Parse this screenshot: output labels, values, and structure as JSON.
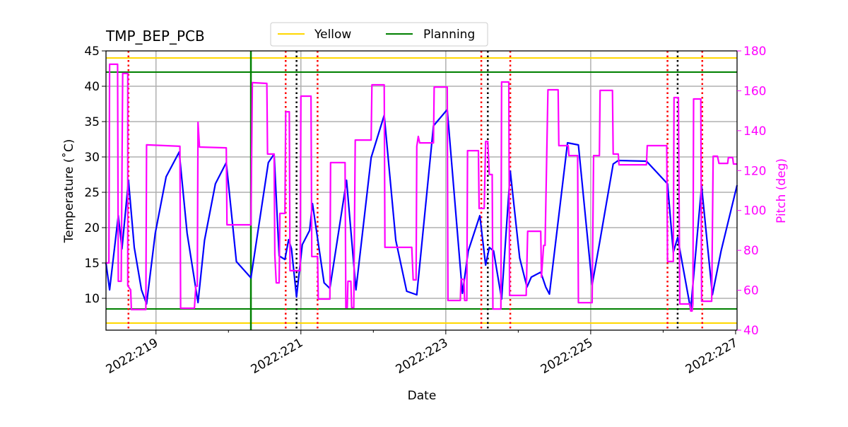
{
  "chart_data": {
    "type": "line",
    "title": "TMP_BEP_PCB",
    "xlabel": "Date",
    "ylabel": "Temperature ($^\\circ$C)",
    "ylabel_display": "Temperature (˚C)",
    "y2label": "Pitch (deg)",
    "xlim": [
      218.31,
      227.02
    ],
    "ylim": [
      5.5,
      45
    ],
    "y2lim": [
      40,
      180
    ],
    "grid": true,
    "x_ticks": [
      219,
      221,
      223,
      225,
      227
    ],
    "x_tick_labels": [
      "2022:219",
      "2022:221",
      "2022:223",
      "2022:225",
      "2022:227"
    ],
    "x_minor_ticks": [
      220,
      222,
      224,
      226
    ],
    "y_ticks": [
      10,
      15,
      20,
      25,
      30,
      35,
      40,
      45
    ],
    "y2_ticks": [
      40,
      60,
      80,
      100,
      120,
      140,
      160,
      180
    ],
    "legend": {
      "placement": "top-center",
      "entries": [
        {
          "label": "Yellow",
          "color": "#FFD700"
        },
        {
          "label": "Planning",
          "color": "#008000"
        }
      ]
    },
    "colors": {
      "temperature": "#0000FF",
      "pitch": "#FF00FF",
      "yellow": "#FFD700",
      "planning": "#008000",
      "red_event": "#FF0000",
      "black_event": "#000000"
    },
    "hlines": [
      {
        "kind": "yellow",
        "y": 44
      },
      {
        "kind": "yellow",
        "y": 6.5
      },
      {
        "kind": "planning",
        "y": 42
      },
      {
        "kind": "planning",
        "y": 8.5
      }
    ],
    "vlines": [
      {
        "kind": "planning",
        "x": 220.31
      },
      {
        "kind": "red_event",
        "x": 218.62
      },
      {
        "kind": "red_event",
        "x": 220.79
      },
      {
        "kind": "red_event",
        "x": 221.23
      },
      {
        "kind": "red_event",
        "x": 223.49
      },
      {
        "kind": "red_event",
        "x": 223.89
      },
      {
        "kind": "red_event",
        "x": 226.06
      },
      {
        "kind": "red_event",
        "x": 226.54
      },
      {
        "kind": "black_event",
        "x": 220.94
      },
      {
        "kind": "black_event",
        "x": 223.58
      },
      {
        "kind": "black_event",
        "x": 226.2
      }
    ],
    "series": [
      {
        "axis": "left",
        "points": [
          [
            218.31,
            15.0
          ],
          [
            218.36,
            11.2
          ],
          [
            218.48,
            21.7
          ],
          [
            218.53,
            17.0
          ],
          [
            218.62,
            26.7
          ],
          [
            218.7,
            17.2
          ],
          [
            218.8,
            11.2
          ],
          [
            218.87,
            9.2
          ],
          [
            218.99,
            19.2
          ],
          [
            219.14,
            27.2
          ],
          [
            219.32,
            30.7
          ],
          [
            219.43,
            19.2
          ],
          [
            219.58,
            9.4
          ],
          [
            219.67,
            18.2
          ],
          [
            219.82,
            26.2
          ],
          [
            219.97,
            29.2
          ],
          [
            220.11,
            15.2
          ],
          [
            220.31,
            12.9
          ],
          [
            220.55,
            29.2
          ],
          [
            220.63,
            30.4
          ],
          [
            220.7,
            16.0
          ],
          [
            220.78,
            15.5
          ],
          [
            220.83,
            18.3
          ],
          [
            220.87,
            17.0
          ],
          [
            220.94,
            10.2
          ],
          [
            221.02,
            17.6
          ],
          [
            221.12,
            19.6
          ],
          [
            221.16,
            23.4
          ],
          [
            221.32,
            12.2
          ],
          [
            221.4,
            11.4
          ],
          [
            221.63,
            26.7
          ],
          [
            221.76,
            11.2
          ],
          [
            221.97,
            29.9
          ],
          [
            222.15,
            35.9
          ],
          [
            222.31,
            18.2
          ],
          [
            222.46,
            11.0
          ],
          [
            222.6,
            10.5
          ],
          [
            222.83,
            34.4
          ],
          [
            223.02,
            36.7
          ],
          [
            223.23,
            10.7
          ],
          [
            223.31,
            16.7
          ],
          [
            223.47,
            21.7
          ],
          [
            223.55,
            14.7
          ],
          [
            223.6,
            17.2
          ],
          [
            223.66,
            16.7
          ],
          [
            223.77,
            9.9
          ],
          [
            223.89,
            28.0
          ],
          [
            224.02,
            15.7
          ],
          [
            224.12,
            11.6
          ],
          [
            224.18,
            13.0
          ],
          [
            224.31,
            13.7
          ],
          [
            224.38,
            11.6
          ],
          [
            224.43,
            10.6
          ],
          [
            224.68,
            32.0
          ],
          [
            224.83,
            31.7
          ],
          [
            225.02,
            11.9
          ],
          [
            225.12,
            17.7
          ],
          [
            225.31,
            29.0
          ],
          [
            225.38,
            29.5
          ],
          [
            225.77,
            29.4
          ],
          [
            226.06,
            26.2
          ],
          [
            226.14,
            16.5
          ],
          [
            226.2,
            18.6
          ],
          [
            226.38,
            8.4
          ],
          [
            226.53,
            25.9
          ],
          [
            226.68,
            10.5
          ],
          [
            226.8,
            16.7
          ],
          [
            227.02,
            26.0
          ]
        ]
      },
      {
        "axis": "right",
        "points": [
          [
            218.31,
            73.7
          ],
          [
            218.35,
            73.7
          ],
          [
            218.36,
            173.3
          ],
          [
            218.47,
            173.3
          ],
          [
            218.48,
            64.5
          ],
          [
            218.52,
            64.5
          ],
          [
            218.54,
            168.7
          ],
          [
            218.61,
            168.7
          ],
          [
            218.61,
            62.3
          ],
          [
            218.65,
            60.2
          ],
          [
            218.66,
            50.3
          ],
          [
            218.86,
            50.3
          ],
          [
            218.87,
            132.9
          ],
          [
            219.33,
            132.2
          ],
          [
            219.34,
            51.0
          ],
          [
            219.53,
            51.0
          ],
          [
            219.55,
            62
          ],
          [
            219.57,
            62
          ],
          [
            219.58,
            144.2
          ],
          [
            219.6,
            131.8
          ],
          [
            219.97,
            131.4
          ],
          [
            219.98,
            92.8
          ],
          [
            220.31,
            92.8
          ],
          [
            220.33,
            164.1
          ],
          [
            220.53,
            163.7
          ],
          [
            220.54,
            128.3
          ],
          [
            220.63,
            128.3
          ],
          [
            220.64,
            77.9
          ],
          [
            220.66,
            63.7
          ],
          [
            220.7,
            63.7
          ],
          [
            220.71,
            98.5
          ],
          [
            220.78,
            98.5
          ],
          [
            220.79,
            149.5
          ],
          [
            220.84,
            149.5
          ],
          [
            220.85,
            69.8
          ],
          [
            220.99,
            69.8
          ],
          [
            221.0,
            157.3
          ],
          [
            221.14,
            157.3
          ],
          [
            221.15,
            76.9
          ],
          [
            221.23,
            76.9
          ],
          [
            221.24,
            55.6
          ],
          [
            221.4,
            55.6
          ],
          [
            221.41,
            124.0
          ],
          [
            221.61,
            124.0
          ],
          [
            221.62,
            51.3
          ],
          [
            221.64,
            51.3
          ],
          [
            221.65,
            64.5
          ],
          [
            221.69,
            64.5
          ],
          [
            221.7,
            51.3
          ],
          [
            221.73,
            51.3
          ],
          [
            221.75,
            135.3
          ],
          [
            221.97,
            135.3
          ],
          [
            221.98,
            163.0
          ],
          [
            222.15,
            163.0
          ],
          [
            222.16,
            81.5
          ],
          [
            222.53,
            81.5
          ],
          [
            222.55,
            65.2
          ],
          [
            222.59,
            65.2
          ],
          [
            222.6,
            132.2
          ],
          [
            222.62,
            137.1
          ],
          [
            222.64,
            133.9
          ],
          [
            222.83,
            133.9
          ],
          [
            222.84,
            161.9
          ],
          [
            223.02,
            161.9
          ],
          [
            223.03,
            54.9
          ],
          [
            223.2,
            54.9
          ],
          [
            223.21,
            65.5
          ],
          [
            223.25,
            65.5
          ],
          [
            223.26,
            54.9
          ],
          [
            223.29,
            54.9
          ],
          [
            223.3,
            130.0
          ],
          [
            223.45,
            130.0
          ],
          [
            223.46,
            101.0
          ],
          [
            223.53,
            101.0
          ],
          [
            223.55,
            134.6
          ],
          [
            223.58,
            134.6
          ],
          [
            223.6,
            118.0
          ],
          [
            223.64,
            118.0
          ],
          [
            223.65,
            50.6
          ],
          [
            223.76,
            50.6
          ],
          [
            223.77,
            164.4
          ],
          [
            223.87,
            164.4
          ],
          [
            223.88,
            57.4
          ],
          [
            224.11,
            57.4
          ],
          [
            224.13,
            89.6
          ],
          [
            224.31,
            89.6
          ],
          [
            224.32,
            66.6
          ],
          [
            224.35,
            82.5
          ],
          [
            224.37,
            82.5
          ],
          [
            224.41,
            160.5
          ],
          [
            224.55,
            160.5
          ],
          [
            224.56,
            132.5
          ],
          [
            224.69,
            132.5
          ],
          [
            224.7,
            127.5
          ],
          [
            224.82,
            127.5
          ],
          [
            224.83,
            53.8
          ],
          [
            225.02,
            53.8
          ],
          [
            225.04,
            127.5
          ],
          [
            225.12,
            127.5
          ],
          [
            225.13,
            160.2
          ],
          [
            225.3,
            160.2
          ],
          [
            225.31,
            128.3
          ],
          [
            225.38,
            128.3
          ],
          [
            225.39,
            122.9
          ],
          [
            225.77,
            122.9
          ],
          [
            225.78,
            132.5
          ],
          [
            226.05,
            132.5
          ],
          [
            226.06,
            74.4
          ],
          [
            226.14,
            74.4
          ],
          [
            226.15,
            156.6
          ],
          [
            226.21,
            156.6
          ],
          [
            226.23,
            53.1
          ],
          [
            226.37,
            53.1
          ],
          [
            226.38,
            49.6
          ],
          [
            226.4,
            49.6
          ],
          [
            226.41,
            53.1
          ],
          [
            226.42,
            155.9
          ],
          [
            226.52,
            155.9
          ],
          [
            226.53,
            54.5
          ],
          [
            226.67,
            54.5
          ],
          [
            226.69,
            127.2
          ],
          [
            226.75,
            127.2
          ],
          [
            226.77,
            123.6
          ],
          [
            226.89,
            123.6
          ],
          [
            226.9,
            126.5
          ],
          [
            226.96,
            126.5
          ],
          [
            226.97,
            123.3
          ],
          [
            227.02,
            123.3
          ]
        ]
      }
    ]
  }
}
